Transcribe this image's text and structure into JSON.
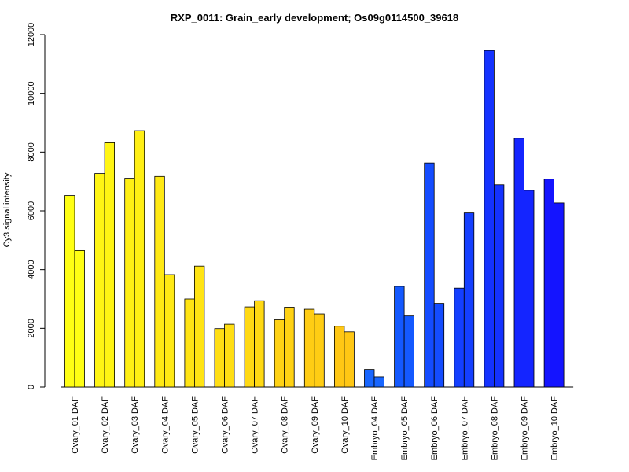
{
  "chart_data": {
    "type": "bar",
    "title": "RXP_0011: Grain_early development; Os09g0114500_39618",
    "xlabel": "",
    "ylabel": "Cy3 signal intensity",
    "ylim": [
      0,
      12000
    ],
    "yticks": [
      0,
      2000,
      4000,
      6000,
      8000,
      10000,
      12000
    ],
    "grid": false,
    "legend": "none",
    "categories": [
      "Ovary_01 DAF",
      "Ovary_02 DAF",
      "Ovary_03 DAF",
      "Ovary_04 DAF",
      "Ovary_05 DAF",
      "Ovary_06 DAF",
      "Ovary_07 DAF",
      "Ovary_08 DAF",
      "Ovary_09 DAF",
      "Ovary_10 DAF",
      "Embryo_04 DAF",
      "Embryo_05 DAF",
      "Embryo_06 DAF",
      "Embryo_07 DAF",
      "Embryo_08 DAF",
      "Embryo_09 DAF",
      "Embryo_10 DAF"
    ],
    "colors": [
      "#ffff14",
      "#fff514",
      "#ffef14",
      "#ffe914",
      "#ffe414",
      "#ffde14",
      "#ffd914",
      "#ffd214",
      "#ffcd14",
      "#ffc714",
      "#1866ff",
      "#1459ff",
      "#144cff",
      "#143fff",
      "#1432ff",
      "#1425ff",
      "#1414ff"
    ],
    "series": [
      {
        "values": [
          6520,
          7270,
          7110,
          7170,
          3000,
          1990,
          2730,
          2290,
          2650,
          2070,
          600,
          3430,
          7630,
          3370,
          11460,
          8470,
          7080
        ]
      },
      {
        "values": [
          4650,
          8320,
          8730,
          3830,
          4120,
          2140,
          2940,
          2720,
          2490,
          1880,
          350,
          2420,
          2850,
          5930,
          6890,
          6700,
          6270
        ]
      }
    ]
  }
}
